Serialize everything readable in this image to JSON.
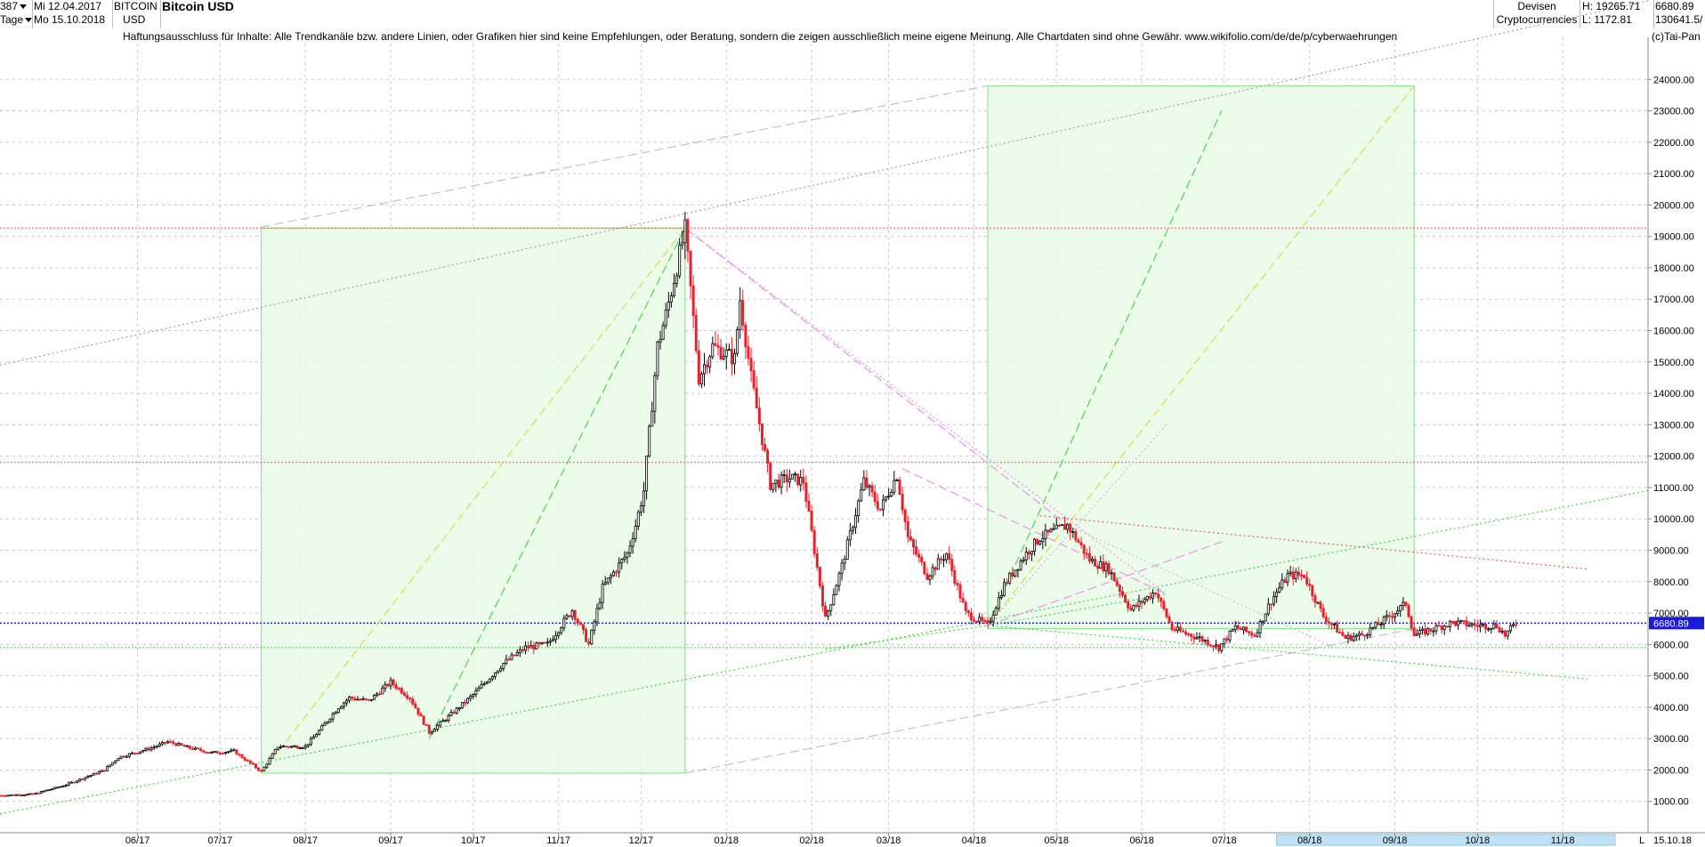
{
  "header": {
    "count": "387",
    "date_from": "Mi 12.04.2017",
    "date_to": "Mo 15.10.2018",
    "interval": "Tage",
    "symbol": "BITCOIN",
    "currency": "USD",
    "title": "Bitcoin USD",
    "category": "Devisen",
    "subcategory": "Cryptocurrencies",
    "high": "H: 19265.71",
    "low": "L: 1172.81",
    "last": "6680.89",
    "volume": "130641.5/"
  },
  "disclaimer": "Haftungsausschluss für Inhalte: Alle Trendkanäle bzw. andere Linien, oder Grafiken hier sind keine Empfehlungen, oder Beratung, sondern die zeigen ausschließlich meine eigene Meinung. Alle Chartdaten sind ohne Gewähr.  www.wikifolio.com/de/de/p/cyberwaehrungen",
  "copyright": "(c)Tai-Pan",
  "colors": {
    "up": "#000000",
    "down": "#e8202a",
    "grid": "#c8c8c8",
    "last_price": "#1a1ad8",
    "box_fill": "#e9fbe6",
    "box_stroke": "#7ee07e"
  },
  "chart_data": {
    "type": "candlestick",
    "title": "Bitcoin USD",
    "ylim": [
      0,
      25000
    ],
    "y_ticks": [
      1000,
      2000,
      3000,
      4000,
      5000,
      6000,
      7000,
      8000,
      9000,
      10000,
      11000,
      12000,
      13000,
      14000,
      15000,
      16000,
      17000,
      18000,
      19000,
      20000,
      21000,
      22000,
      23000,
      24000
    ],
    "y_tick_labels": [
      "1000.00",
      "2000.00",
      "3000.00",
      "4000.00",
      "5000.00",
      "6000.00",
      "7000.00",
      "8000.00",
      "9000.00",
      "10000.00",
      "11000.00",
      "12000.00",
      "13000.00",
      "14000.00",
      "15000.00",
      "16000.00",
      "17000.00",
      "18000.00",
      "19000.00",
      "20000.00",
      "21000.00",
      "22000.00",
      "23000.00",
      "24000.00"
    ],
    "x_range": [
      "2017-04-12",
      "2018-12-02"
    ],
    "x_ticks": [
      {
        "date": "2017-06-01",
        "label": "06/17"
      },
      {
        "date": "2017-07-01",
        "label": "07/17"
      },
      {
        "date": "2017-08-01",
        "label": "08/17"
      },
      {
        "date": "2017-09-01",
        "label": "09/17"
      },
      {
        "date": "2017-10-01",
        "label": "10/17"
      },
      {
        "date": "2017-11-01",
        "label": "11/17"
      },
      {
        "date": "2017-12-01",
        "label": "12/17"
      },
      {
        "date": "2018-01-01",
        "label": "01/18"
      },
      {
        "date": "2018-02-01",
        "label": "02/18"
      },
      {
        "date": "2018-03-01",
        "label": "03/18"
      },
      {
        "date": "2018-04-01",
        "label": "04/18"
      },
      {
        "date": "2018-05-01",
        "label": "05/18"
      },
      {
        "date": "2018-06-01",
        "label": "06/18"
      },
      {
        "date": "2018-07-01",
        "label": "07/18"
      },
      {
        "date": "2018-08-01",
        "label": "08/18"
      },
      {
        "date": "2018-09-01",
        "label": "09/18"
      },
      {
        "date": "2018-10-01",
        "label": "10/18"
      },
      {
        "date": "2018-11-01",
        "label": "11/18"
      }
    ],
    "x_end_label": "15.10.18",
    "scroll_label": "L",
    "last_value": 6680.89,
    "last_value_label": "6680.89",
    "high": 19265.71,
    "low": 1172.81,
    "price_path": [
      [
        "2017-04-12",
        1190
      ],
      [
        "2017-04-24",
        1230
      ],
      [
        "2017-05-05",
        1500
      ],
      [
        "2017-05-20",
        2000
      ],
      [
        "2017-05-25",
        2400
      ],
      [
        "2017-06-06",
        2700
      ],
      [
        "2017-06-12",
        2900
      ],
      [
        "2017-06-20",
        2700
      ],
      [
        "2017-06-28",
        2550
      ],
      [
        "2017-07-06",
        2600
      ],
      [
        "2017-07-16",
        1950
      ],
      [
        "2017-07-22",
        2750
      ],
      [
        "2017-08-01",
        2750
      ],
      [
        "2017-08-06",
        3250
      ],
      [
        "2017-08-13",
        4000
      ],
      [
        "2017-08-17",
        4300
      ],
      [
        "2017-08-24",
        4200
      ],
      [
        "2017-09-01",
        4800
      ],
      [
        "2017-09-08",
        4300
      ],
      [
        "2017-09-15",
        3200
      ],
      [
        "2017-09-22",
        3700
      ],
      [
        "2017-10-01",
        4400
      ],
      [
        "2017-10-12",
        5400
      ],
      [
        "2017-10-20",
        5900
      ],
      [
        "2017-10-28",
        6000
      ],
      [
        "2017-11-06",
        7100
      ],
      [
        "2017-11-12",
        6000
      ],
      [
        "2017-11-17",
        7800
      ],
      [
        "2017-11-26",
        8900
      ],
      [
        "2017-11-29",
        9800
      ],
      [
        "2017-12-02",
        10900
      ],
      [
        "2017-12-07",
        15500
      ],
      [
        "2017-12-10",
        16500
      ],
      [
        "2017-12-17",
        19200
      ],
      [
        "2017-12-22",
        14500
      ],
      [
        "2017-12-27",
        15500
      ],
      [
        "2018-01-04",
        15100
      ],
      [
        "2018-01-06",
        17000
      ],
      [
        "2018-01-10",
        14500
      ],
      [
        "2018-01-17",
        11100
      ],
      [
        "2018-01-24",
        11300
      ],
      [
        "2018-01-29",
        11200
      ],
      [
        "2018-02-02",
        9000
      ],
      [
        "2018-02-06",
        6800
      ],
      [
        "2018-02-12",
        8500
      ],
      [
        "2018-02-20",
        11200
      ],
      [
        "2018-02-26",
        10300
      ],
      [
        "2018-03-04",
        11400
      ],
      [
        "2018-03-08",
        9400
      ],
      [
        "2018-03-15",
        8200
      ],
      [
        "2018-03-22",
        8900
      ],
      [
        "2018-03-29",
        7000
      ],
      [
        "2018-04-06",
        6600
      ],
      [
        "2018-04-12",
        7900
      ],
      [
        "2018-04-20",
        8900
      ],
      [
        "2018-04-25",
        9400
      ],
      [
        "2018-05-05",
        9800
      ],
      [
        "2018-05-13",
        8700
      ],
      [
        "2018-05-20",
        8400
      ],
      [
        "2018-05-28",
        7100
      ],
      [
        "2018-06-06",
        7700
      ],
      [
        "2018-06-12",
        6500
      ],
      [
        "2018-06-22",
        6200
      ],
      [
        "2018-06-29",
        5900
      ],
      [
        "2018-07-05",
        6550
      ],
      [
        "2018-07-12",
        6300
      ],
      [
        "2018-07-18",
        7400
      ],
      [
        "2018-07-24",
        8200
      ],
      [
        "2018-07-30",
        8200
      ],
      [
        "2018-08-06",
        6900
      ],
      [
        "2018-08-14",
        6200
      ],
      [
        "2018-08-20",
        6300
      ],
      [
        "2018-08-27",
        6700
      ],
      [
        "2018-09-05",
        7300
      ],
      [
        "2018-09-08",
        6300
      ],
      [
        "2018-09-15",
        6500
      ],
      [
        "2018-09-22",
        6700
      ],
      [
        "2018-10-01",
        6600
      ],
      [
        "2018-10-08",
        6600
      ],
      [
        "2018-10-11",
        6300
      ],
      [
        "2018-10-15",
        6680
      ]
    ],
    "annotations": {
      "boxes": [
        {
          "from": "2017-07-16",
          "to": "2017-12-17",
          "low": 1900,
          "high": 19265
        },
        {
          "from": "2018-04-06",
          "to": "2018-09-08",
          "low": 6500,
          "high": 23800
        }
      ],
      "horizontal_lines": [
        {
          "y": 19265.71,
          "color": "#e05a5a"
        },
        {
          "y": 11800,
          "color": "#e05a5a"
        },
        {
          "y": 6680.89,
          "color": "#1a1ad8"
        },
        {
          "y": 5900,
          "color": "#3fcf3f"
        }
      ],
      "trend_lines": [
        {
          "from": [
            "2017-04-12",
            14900
          ],
          "to": [
            "2018-12-02",
            26500
          ],
          "color": "#9a9a9a",
          "style": "dotted"
        },
        {
          "from": [
            "2017-07-16",
            19300
          ],
          "to": [
            "2018-04-06",
            23800
          ],
          "color": "#bdbdbd",
          "style": "dashed"
        },
        {
          "from": [
            "2017-12-17",
            1900
          ],
          "to": [
            "2018-09-08",
            6500
          ],
          "color": "#bdbdbd",
          "style": "dashed"
        },
        {
          "from": [
            "2017-04-12",
            600
          ],
          "to": [
            "2018-12-02",
            10900
          ],
          "color": "#3fcf3f",
          "style": "dotted"
        },
        {
          "from": [
            "2017-07-16",
            1900
          ],
          "to": [
            "2017-12-17",
            19265
          ],
          "color": "#d8d840",
          "style": "dashed"
        },
        {
          "from": [
            "2017-09-15",
            3000
          ],
          "to": [
            "2017-12-17",
            19265
          ],
          "color": "#3fcf3f",
          "style": "dashed"
        },
        {
          "from": [
            "2018-04-06",
            6600
          ],
          "to": [
            "2018-06-30",
            23000
          ],
          "color": "#3fcf3f",
          "style": "dashed"
        },
        {
          "from": [
            "2018-04-06",
            6600
          ],
          "to": [
            "2018-09-08",
            23800
          ],
          "color": "#d8d840",
          "style": "dashed"
        },
        {
          "from": [
            "2017-12-17",
            19265
          ],
          "to": [
            "2018-05-05",
            9800
          ],
          "color": "#e88ae8",
          "style": "dashed"
        },
        {
          "from": [
            "2017-12-17",
            19265
          ],
          "to": [
            "2018-06-10",
            7600
          ],
          "color": "#e88ae8",
          "style": "dotted"
        },
        {
          "from": [
            "2018-03-06",
            11600
          ],
          "to": [
            "2018-06-10",
            7600
          ],
          "color": "#e88ae8",
          "style": "dashed"
        },
        {
          "from": [
            "2018-04-06",
            6600
          ],
          "to": [
            "2018-06-10",
            7600
          ],
          "color": "#3fcf3f",
          "style": "dotted"
        },
        {
          "from": [
            "2018-04-06",
            6600
          ],
          "to": [
            "2018-11-10",
            4900
          ],
          "color": "#3fcf3f",
          "style": "dotted"
        },
        {
          "from": [
            "2018-04-06",
            6600
          ],
          "to": [
            "2018-06-10",
            13000
          ],
          "color": "#c8a8e8",
          "style": "dotted"
        },
        {
          "from": [
            "2018-04-06",
            6600
          ],
          "to": [
            "2018-07-01",
            9300
          ],
          "color": "#e88ae8",
          "style": "dashed"
        },
        {
          "from": [
            "2018-04-25",
            10100
          ],
          "to": [
            "2018-11-10",
            8400
          ],
          "color": "#e05a5a",
          "style": "dotted"
        },
        {
          "from": [
            "2018-05-05",
            9800
          ],
          "to": [
            "2018-08-10",
            5900
          ],
          "color": "#bdbdbd",
          "style": "dotted"
        },
        {
          "from": [
            "2018-02-06",
            5850
          ],
          "to": [
            "2018-04-06",
            6600
          ],
          "color": "#3fcf3f",
          "style": "dotted"
        }
      ]
    }
  }
}
